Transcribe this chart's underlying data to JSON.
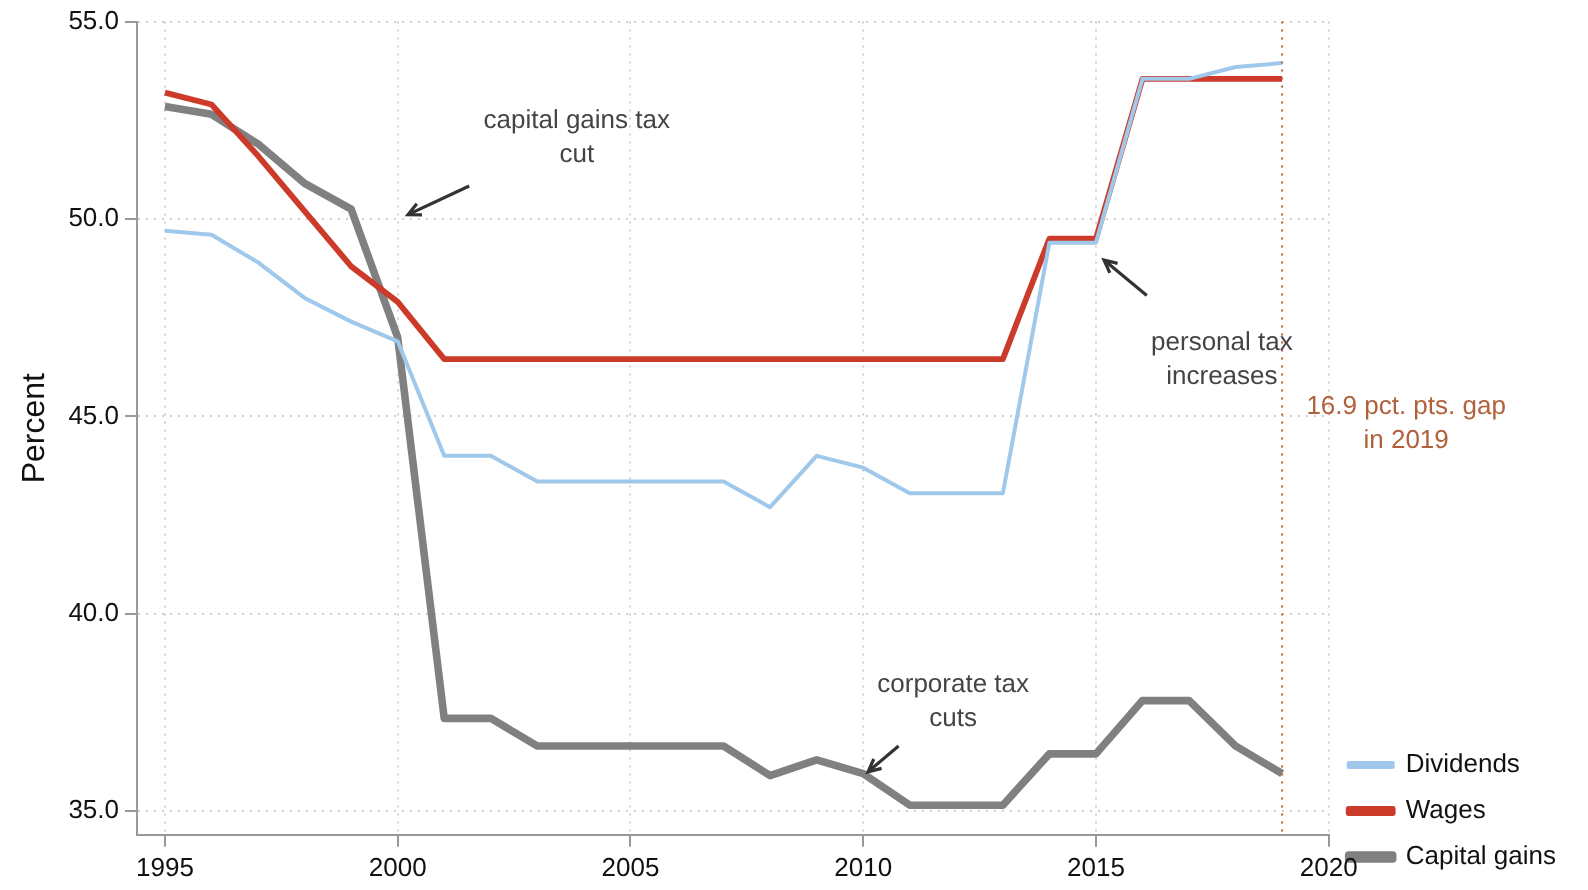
{
  "chart_data": {
    "type": "line",
    "ylabel": "Percent",
    "x": [
      1995,
      1996,
      1997,
      1998,
      1999,
      2000,
      2001,
      2002,
      2003,
      2004,
      2005,
      2006,
      2007,
      2008,
      2009,
      2010,
      2011,
      2012,
      2013,
      2014,
      2015,
      2016,
      2017,
      2018,
      2019
    ],
    "series": [
      {
        "name": "Dividends",
        "color": "#9fc8ea",
        "values": [
          49.7,
          49.6,
          48.9,
          48.0,
          47.4,
          46.9,
          44.0,
          44.0,
          43.35,
          43.35,
          43.35,
          43.35,
          43.35,
          42.7,
          44.0,
          43.7,
          43.05,
          43.05,
          43.05,
          49.4,
          49.4,
          53.55,
          53.55,
          53.85,
          53.95
        ]
      },
      {
        "name": "Wages",
        "color": "#cc3b2a",
        "values": [
          53.2,
          52.9,
          51.6,
          50.2,
          48.8,
          47.9,
          46.45,
          46.45,
          46.45,
          46.45,
          46.45,
          46.45,
          46.45,
          46.45,
          46.45,
          46.45,
          46.45,
          46.45,
          46.45,
          49.5,
          49.5,
          53.55,
          53.55,
          53.55,
          53.55
        ]
      },
      {
        "name": "Capital gains",
        "color": "#808080",
        "values": [
          52.85,
          52.65,
          51.9,
          50.9,
          50.25,
          47.0,
          37.35,
          37.35,
          36.65,
          36.65,
          36.65,
          36.65,
          36.65,
          35.9,
          36.3,
          35.95,
          35.15,
          35.15,
          35.15,
          36.45,
          36.45,
          37.8,
          37.8,
          36.65,
          35.95
        ]
      }
    ],
    "xlim": [
      1994.4,
      2020
    ],
    "xticks": [
      1995,
      2000,
      2005,
      2010,
      2015,
      2020
    ],
    "ylim": [
      34.4,
      55
    ],
    "yticks": [
      {
        "value": 35,
        "label": "35.0"
      },
      {
        "value": 40,
        "label": "40.0"
      },
      {
        "value": 45,
        "label": "45.0"
      },
      {
        "value": 50,
        "label": "50.0"
      },
      {
        "value": 55,
        "label": "55.0"
      }
    ],
    "grid": true,
    "legend": "bottom right",
    "marker": "none",
    "line_style": "solid",
    "ref_lines": [
      {
        "axis": "x",
        "value": 2019,
        "label": "16.9 pct. pts. gap in 2019",
        "color": "#b0603a",
        "line_style": "dotted"
      }
    ],
    "annotations": [
      "capital gains tax cut",
      {
        "text": "personal tax increases",
        "x": 2015,
        "y": 49.1
      },
      {
        "text": "corporate tax cuts",
        "x": 2010,
        "y": 35.9
      }
    ]
  }
}
